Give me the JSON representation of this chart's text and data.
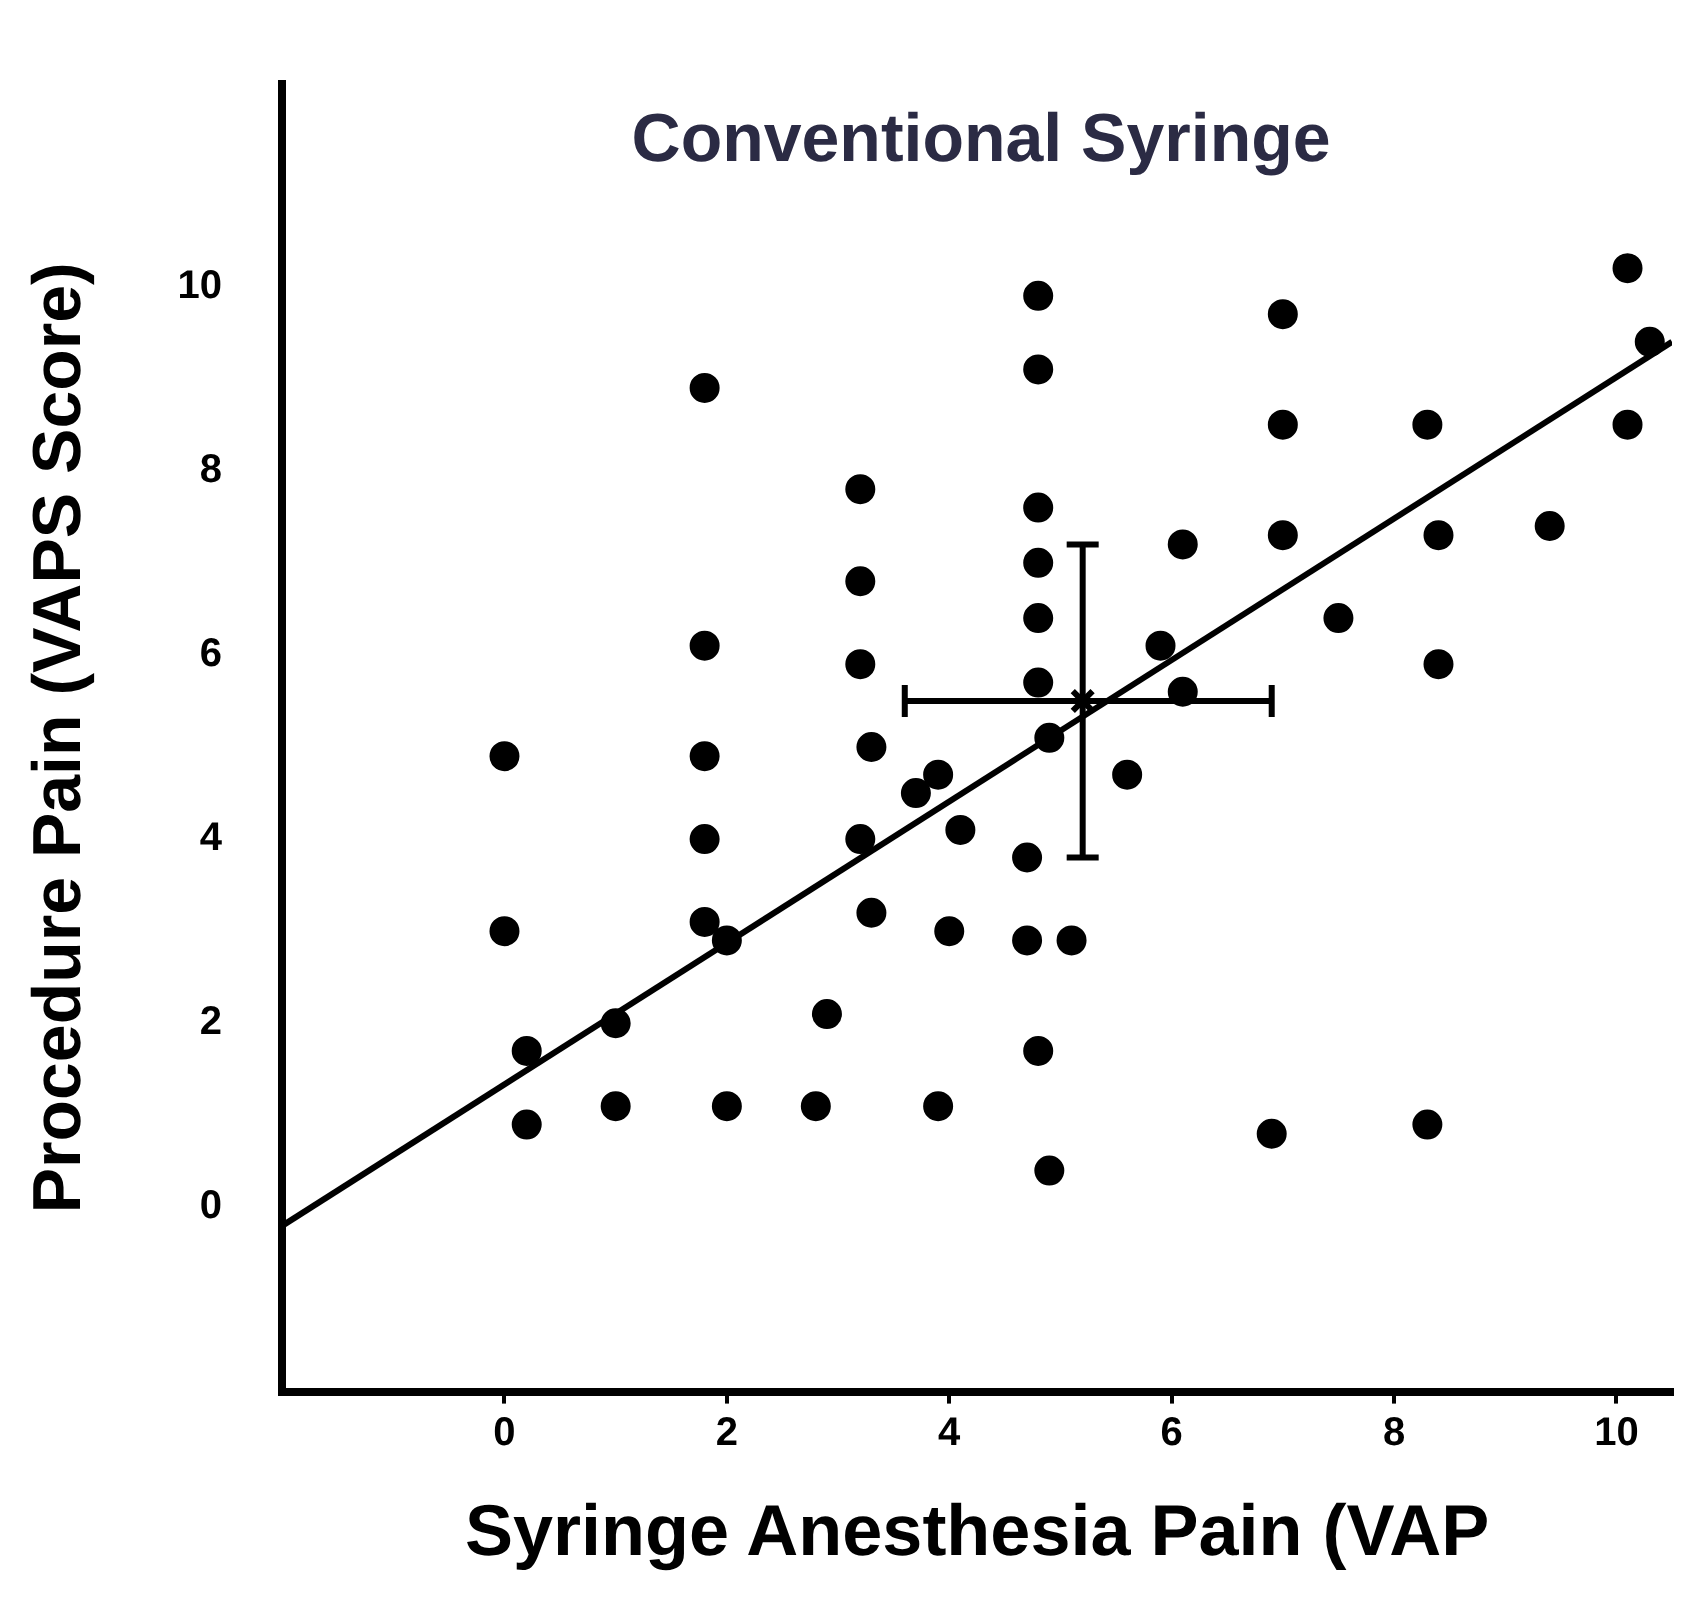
{
  "chart_data": {
    "type": "scatter",
    "title": "Conventional Syringe",
    "xlabel": "Syringe Anesthesia Pain (VAP",
    "ylabel": "Procedure Pain (VAPS Score)",
    "xlim": [
      -2,
      10.5
    ],
    "ylim": [
      -2,
      12.2
    ],
    "xticks": [
      0,
      2,
      4,
      6,
      8,
      10
    ],
    "yticks": [
      0,
      2,
      4,
      6,
      8,
      10
    ],
    "grid": false,
    "legend": false,
    "marker": "circle",
    "series": [
      {
        "color": "#000000",
        "x": [
          0.0,
          0.0,
          0.2,
          0.2,
          1.0,
          1.0,
          1.8,
          1.8,
          1.8,
          1.8,
          1.8,
          2.0,
          2.0,
          2.8,
          2.9,
          3.2,
          3.2,
          3.2,
          3.3,
          3.2,
          3.3,
          3.7,
          3.9,
          4.1,
          4.0,
          3.9,
          4.8,
          4.8,
          4.8,
          4.8,
          4.8,
          4.8,
          4.9,
          4.7,
          4.7,
          4.8,
          4.9,
          5.1,
          5.6,
          5.9,
          6.1,
          6.1,
          7.0,
          7.0,
          7.0,
          6.9,
          7.5,
          8.3,
          8.4,
          8.4,
          8.3,
          9.4,
          10.1,
          10.3,
          10.1
        ],
        "values": [
          4.9,
          3.0,
          1.7,
          0.9,
          2.0,
          1.1,
          8.9,
          6.1,
          4.9,
          4.0,
          3.1,
          2.9,
          1.1,
          1.1,
          2.1,
          7.8,
          6.8,
          5.9,
          5.0,
          4.0,
          3.2,
          4.5,
          4.7,
          4.1,
          3.0,
          1.1,
          9.9,
          9.1,
          7.6,
          7.0,
          6.4,
          5.7,
          5.1,
          3.8,
          2.9,
          1.7,
          0.4,
          2.9,
          4.7,
          6.1,
          7.2,
          5.6,
          9.7,
          8.5,
          7.3,
          0.8,
          6.4,
          8.5,
          7.3,
          5.9,
          0.9,
          7.4,
          10.2,
          9.4,
          8.5
        ]
      },
      {
        "type": "scatter",
        "color": "#000000",
        "marker": "cross",
        "x": [
          5.2
        ],
        "values": [
          5.5
        ],
        "errors": [
          [
            3.8,
            7.2
          ]
        ],
        "xerrors": [
          [
            3.6,
            6.9
          ]
        ]
      },
      {
        "type": "line",
        "color": "#000000",
        "marker": "none",
        "line_style": "solid",
        "x": [
          -2,
          10.5
        ],
        "values": [
          -0.2,
          9.4
        ]
      }
    ]
  }
}
